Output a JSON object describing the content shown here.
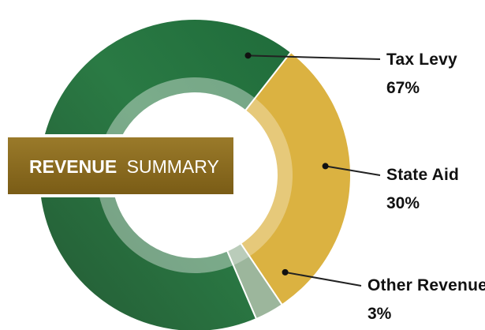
{
  "chart_data": {
    "type": "pie",
    "title_bold": "REVENUE",
    "title_normal": "SUMMARY",
    "slices": [
      {
        "name": "Tax Levy",
        "percent_label": "67%",
        "value": 67,
        "color": "#1e6a3e"
      },
      {
        "name": "State Aid",
        "percent_label": "30%",
        "value": 30,
        "color": "#dbb241"
      },
      {
        "name": "Other Revenue",
        "percent_label": "3%",
        "value": 3,
        "color": "#9cb69c"
      }
    ],
    "title_box_color": "#8a6a1e",
    "inner_ring_color": "#ffffff"
  }
}
